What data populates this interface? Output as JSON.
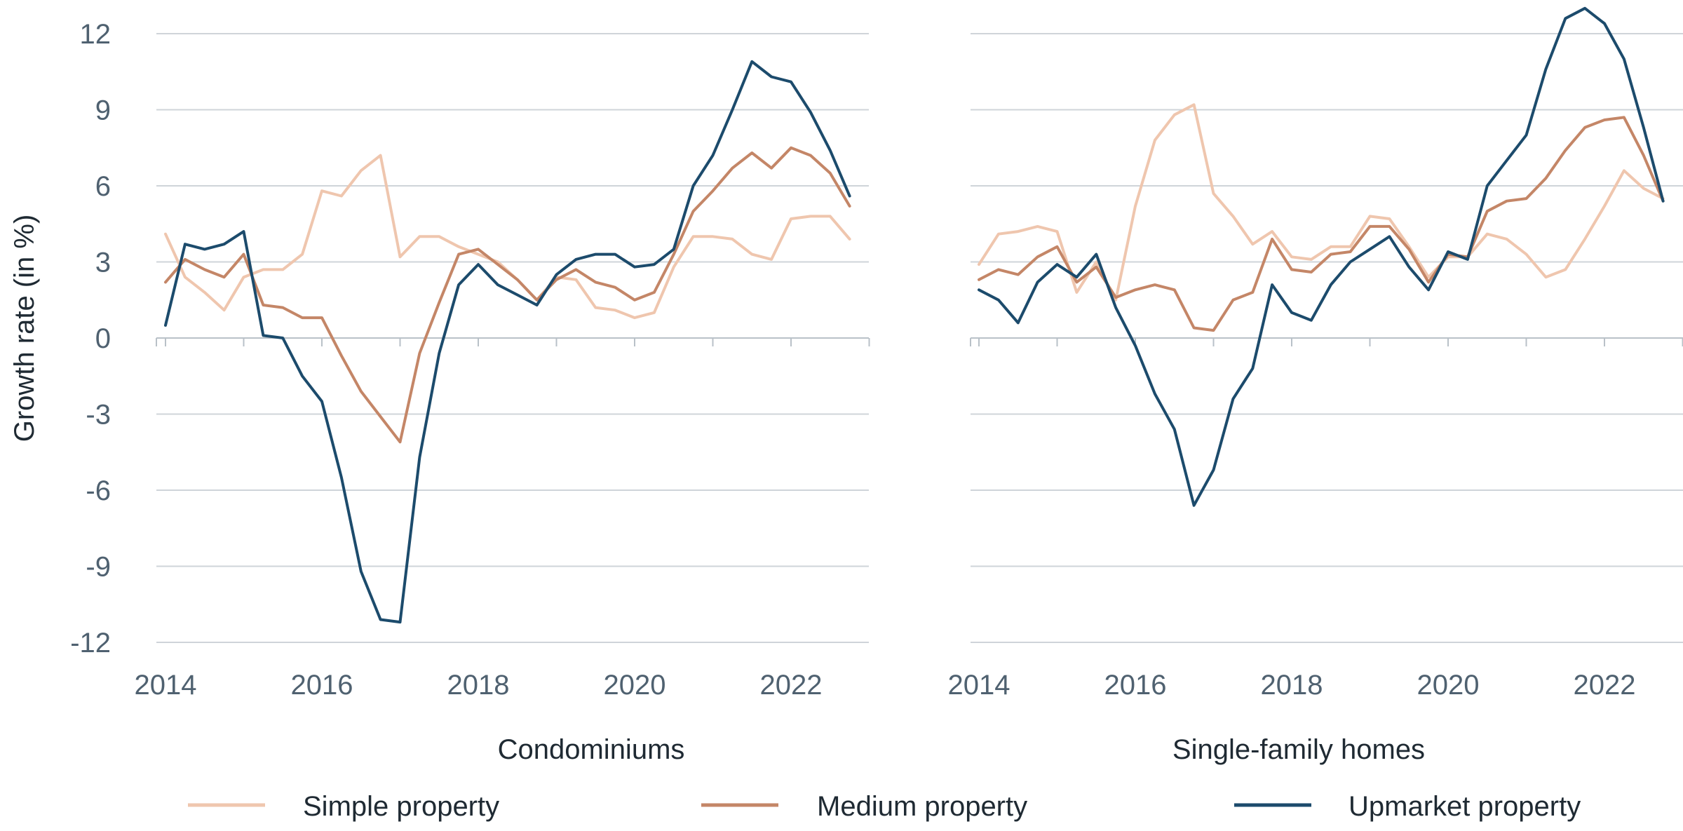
{
  "chart_data": {
    "type": "line",
    "ylabel": "Growth rate (in %)",
    "ylim": [
      -12,
      12
    ],
    "yticks": [
      12,
      9,
      6,
      3,
      0,
      -3,
      -6,
      -9,
      -12
    ],
    "ytick_labels": [
      "12",
      "9",
      "6",
      "3",
      "0",
      "-3",
      "-6",
      "-9",
      "-12"
    ],
    "xlim": [
      2014.0,
      2023.0
    ],
    "xticks": [
      2014,
      2016,
      2018,
      2020,
      2022
    ],
    "xtick_labels": [
      "2014",
      "2016",
      "2018",
      "2020",
      "2022"
    ],
    "grid": "horizontal",
    "legend_position": "bottom",
    "colors": {
      "simple": "#efc6ae",
      "medium": "#c48667",
      "upmarket": "#1c4b6c",
      "grid": "#cfd4d9"
    },
    "legend": [
      {
        "key": "simple",
        "label": "Simple property"
      },
      {
        "key": "medium",
        "label": "Medium property"
      },
      {
        "key": "upmarket",
        "label": "Upmarket property"
      }
    ],
    "panels": [
      {
        "title": "Condominiums",
        "x": [
          2014.0,
          2014.25,
          2014.5,
          2014.75,
          2015.0,
          2015.25,
          2015.5,
          2015.75,
          2016.0,
          2016.25,
          2016.5,
          2016.75,
          2017.0,
          2017.25,
          2017.5,
          2017.75,
          2018.0,
          2018.25,
          2018.5,
          2018.75,
          2019.0,
          2019.25,
          2019.5,
          2019.75,
          2020.0,
          2020.25,
          2020.5,
          2020.75,
          2021.0,
          2021.25,
          2021.5,
          2021.75,
          2022.0,
          2022.25,
          2022.5,
          2022.75
        ],
        "series": [
          {
            "key": "simple",
            "values": [
              4.1,
              2.4,
              1.8,
              1.1,
              2.4,
              2.7,
              2.7,
              3.3,
              5.8,
              5.6,
              6.6,
              7.2,
              3.2,
              4.0,
              4.0,
              3.6,
              3.3,
              3.0,
              2.3,
              1.5,
              2.4,
              2.3,
              1.2,
              1.1,
              0.8,
              1.0,
              2.8,
              4.0,
              4.0,
              3.9,
              3.3,
              3.1,
              4.7,
              4.8,
              4.8,
              3.9
            ]
          },
          {
            "key": "medium",
            "values": [
              2.2,
              3.1,
              2.7,
              2.4,
              3.3,
              1.3,
              1.2,
              0.8,
              0.8,
              -0.7,
              -2.1,
              -3.1,
              -4.1,
              -0.6,
              1.4,
              3.3,
              3.5,
              2.9,
              2.3,
              1.5,
              2.3,
              2.7,
              2.2,
              2.0,
              1.5,
              1.8,
              3.3,
              5.0,
              5.8,
              6.7,
              7.3,
              6.7,
              7.5,
              7.2,
              6.5,
              5.2
            ]
          },
          {
            "key": "upmarket",
            "values": [
              0.5,
              3.7,
              3.5,
              3.7,
              4.2,
              0.1,
              0.0,
              -1.5,
              -2.5,
              -5.5,
              -9.2,
              -11.1,
              -11.2,
              -4.7,
              -0.6,
              2.1,
              2.9,
              2.1,
              1.7,
              1.3,
              2.5,
              3.1,
              3.3,
              3.3,
              2.8,
              2.9,
              3.5,
              6.0,
              7.2,
              9.0,
              10.9,
              10.3,
              10.1,
              8.9,
              7.4,
              5.6
            ]
          }
        ]
      },
      {
        "title": "Single-family homes",
        "x": [
          2014.0,
          2014.25,
          2014.5,
          2014.75,
          2015.0,
          2015.25,
          2015.5,
          2015.75,
          2016.0,
          2016.25,
          2016.5,
          2016.75,
          2017.0,
          2017.25,
          2017.5,
          2017.75,
          2018.0,
          2018.25,
          2018.5,
          2018.75,
          2019.0,
          2019.25,
          2019.5,
          2019.75,
          2020.0,
          2020.25,
          2020.5,
          2020.75,
          2021.0,
          2021.25,
          2021.5,
          2021.75,
          2022.0,
          2022.25,
          2022.5,
          2022.75
        ],
        "series": [
          {
            "key": "simple",
            "values": [
              2.9,
              4.1,
              4.2,
              4.4,
              4.2,
              1.8,
              3.0,
              1.5,
              5.2,
              7.8,
              8.8,
              9.2,
              5.7,
              4.8,
              3.7,
              4.2,
              3.2,
              3.1,
              3.6,
              3.6,
              4.8,
              4.7,
              3.6,
              2.4,
              3.2,
              3.2,
              4.1,
              3.9,
              3.3,
              2.4,
              2.7,
              3.9,
              5.2,
              6.6,
              5.9,
              5.5
            ]
          },
          {
            "key": "medium",
            "values": [
              2.3,
              2.7,
              2.5,
              3.2,
              3.6,
              2.2,
              2.8,
              1.6,
              1.9,
              2.1,
              1.9,
              0.4,
              0.3,
              1.5,
              1.8,
              3.9,
              2.7,
              2.6,
              3.3,
              3.4,
              4.4,
              4.4,
              3.5,
              2.2,
              3.3,
              3.2,
              5.0,
              5.4,
              5.5,
              6.3,
              7.4,
              8.3,
              8.6,
              8.7,
              7.2,
              5.4
            ]
          },
          {
            "key": "upmarket",
            "values": [
              1.9,
              1.5,
              0.6,
              2.2,
              2.9,
              2.4,
              3.3,
              1.2,
              -0.3,
              -2.2,
              -3.6,
              -6.6,
              -5.2,
              -2.4,
              -1.2,
              2.1,
              1.0,
              0.7,
              2.1,
              3.0,
              3.5,
              4.0,
              2.8,
              1.9,
              3.4,
              3.1,
              6.0,
              7.0,
              8.0,
              10.6,
              12.6,
              13.0,
              12.4,
              11.0,
              8.3,
              5.4
            ]
          }
        ]
      }
    ]
  }
}
